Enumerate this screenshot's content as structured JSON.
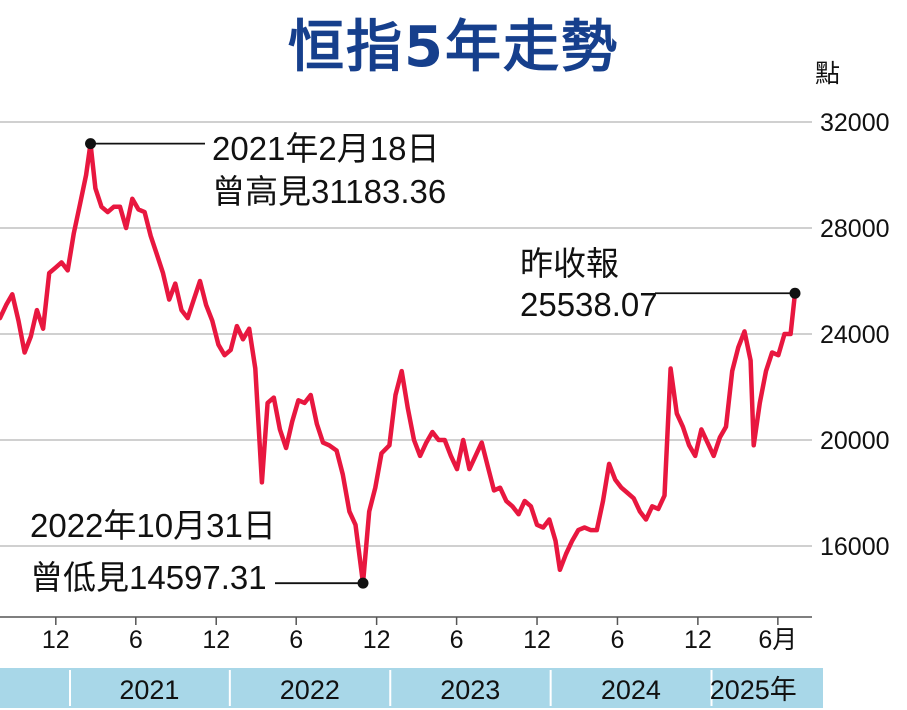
{
  "chart_data": {
    "type": "line",
    "title": "恒指5年走勢",
    "ylabel": "點",
    "ylim": [
      13000,
      32500
    ],
    "yticks": [
      32000,
      28000,
      24000,
      20000,
      16000
    ],
    "x_start": "2020-07-27",
    "x_end": "2025-07-10",
    "xtick_labels": [
      {
        "date": "2020-12-01",
        "label": "12"
      },
      {
        "date": "2021-06-01",
        "label": "6"
      },
      {
        "date": "2021-12-01",
        "label": "12"
      },
      {
        "date": "2022-06-01",
        "label": "6"
      },
      {
        "date": "2022-12-01",
        "label": "12"
      },
      {
        "date": "2023-06-01",
        "label": "6"
      },
      {
        "date": "2023-12-01",
        "label": "12"
      },
      {
        "date": "2024-06-01",
        "label": "6"
      },
      {
        "date": "2024-12-01",
        "label": "12"
      },
      {
        "date": "2025-06-01",
        "label": "6月"
      }
    ],
    "years": [
      {
        "label": "2021",
        "start": "2021-01-01",
        "end": "2021-12-31"
      },
      {
        "label": "2022",
        "start": "2022-01-01",
        "end": "2022-12-31"
      },
      {
        "label": "2023",
        "start": "2023-01-01",
        "end": "2023-12-31"
      },
      {
        "label": "2024",
        "start": "2024-01-01",
        "end": "2024-12-31"
      },
      {
        "label": "2025年",
        "start": "2025-01-01",
        "end": "2025-07-10"
      }
    ],
    "series": [
      {
        "color": "#e8173f",
        "points": [
          [
            "2020-07-27",
            24600
          ],
          [
            "2020-08-10",
            25100
          ],
          [
            "2020-08-24",
            25500
          ],
          [
            "2020-09-07",
            24500
          ],
          [
            "2020-09-21",
            23300
          ],
          [
            "2020-10-05",
            23900
          ],
          [
            "2020-10-19",
            24900
          ],
          [
            "2020-11-02",
            24200
          ],
          [
            "2020-11-16",
            26300
          ],
          [
            "2020-11-30",
            26500
          ],
          [
            "2020-12-14",
            26700
          ],
          [
            "2020-12-28",
            26400
          ],
          [
            "2021-01-11",
            27800
          ],
          [
            "2021-01-25",
            28900
          ],
          [
            "2021-02-08",
            30000
          ],
          [
            "2021-02-18",
            31183
          ],
          [
            "2021-03-01",
            29500
          ],
          [
            "2021-03-15",
            28800
          ],
          [
            "2021-03-29",
            28600
          ],
          [
            "2021-04-12",
            28800
          ],
          [
            "2021-04-26",
            28800
          ],
          [
            "2021-05-10",
            28000
          ],
          [
            "2021-05-24",
            29100
          ],
          [
            "2021-06-07",
            28700
          ],
          [
            "2021-06-21",
            28600
          ],
          [
            "2021-07-05",
            27700
          ],
          [
            "2021-07-19",
            27000
          ],
          [
            "2021-08-02",
            26300
          ],
          [
            "2021-08-16",
            25300
          ],
          [
            "2021-08-30",
            25900
          ],
          [
            "2021-09-13",
            24900
          ],
          [
            "2021-09-27",
            24600
          ],
          [
            "2021-10-11",
            25300
          ],
          [
            "2021-10-25",
            26000
          ],
          [
            "2021-11-08",
            25100
          ],
          [
            "2021-11-22",
            24500
          ],
          [
            "2021-12-06",
            23600
          ],
          [
            "2021-12-20",
            23200
          ],
          [
            "2022-01-03",
            23400
          ],
          [
            "2022-01-17",
            24300
          ],
          [
            "2022-01-31",
            23800
          ],
          [
            "2022-02-14",
            24200
          ],
          [
            "2022-02-28",
            22700
          ],
          [
            "2022-03-15",
            18400
          ],
          [
            "2022-03-28",
            21400
          ],
          [
            "2022-04-11",
            21600
          ],
          [
            "2022-04-25",
            20400
          ],
          [
            "2022-05-09",
            19700
          ],
          [
            "2022-05-23",
            20700
          ],
          [
            "2022-06-06",
            21500
          ],
          [
            "2022-06-20",
            21400
          ],
          [
            "2022-07-04",
            21700
          ],
          [
            "2022-07-18",
            20600
          ],
          [
            "2022-08-01",
            19900
          ],
          [
            "2022-08-15",
            19800
          ],
          [
            "2022-09-01",
            19600
          ],
          [
            "2022-09-15",
            18700
          ],
          [
            "2022-09-30",
            17300
          ],
          [
            "2022-10-14",
            16800
          ],
          [
            "2022-10-31",
            14597
          ],
          [
            "2022-11-14",
            17300
          ],
          [
            "2022-11-28",
            18200
          ],
          [
            "2022-12-12",
            19500
          ],
          [
            "2022-12-30",
            19800
          ],
          [
            "2023-01-13",
            21700
          ],
          [
            "2023-01-27",
            22600
          ],
          [
            "2023-02-10",
            21200
          ],
          [
            "2023-02-24",
            20000
          ],
          [
            "2023-03-10",
            19400
          ],
          [
            "2023-03-24",
            19900
          ],
          [
            "2023-04-07",
            20300
          ],
          [
            "2023-04-21",
            20000
          ],
          [
            "2023-05-05",
            20000
          ],
          [
            "2023-05-19",
            19400
          ],
          [
            "2023-06-02",
            18900
          ],
          [
            "2023-06-16",
            20000
          ],
          [
            "2023-06-30",
            18900
          ],
          [
            "2023-07-14",
            19400
          ],
          [
            "2023-07-28",
            19900
          ],
          [
            "2023-08-11",
            19000
          ],
          [
            "2023-08-25",
            18100
          ],
          [
            "2023-09-08",
            18200
          ],
          [
            "2023-09-22",
            17700
          ],
          [
            "2023-10-06",
            17500
          ],
          [
            "2023-10-20",
            17200
          ],
          [
            "2023-11-03",
            17700
          ],
          [
            "2023-11-17",
            17500
          ],
          [
            "2023-12-01",
            16800
          ],
          [
            "2023-12-15",
            16700
          ],
          [
            "2023-12-29",
            17000
          ],
          [
            "2024-01-12",
            16200
          ],
          [
            "2024-01-22",
            15100
          ],
          [
            "2024-02-05",
            15700
          ],
          [
            "2024-02-19",
            16200
          ],
          [
            "2024-03-04",
            16600
          ],
          [
            "2024-03-18",
            16700
          ],
          [
            "2024-04-01",
            16600
          ],
          [
            "2024-04-15",
            16600
          ],
          [
            "2024-04-29",
            17700
          ],
          [
            "2024-05-13",
            19100
          ],
          [
            "2024-05-27",
            18500
          ],
          [
            "2024-06-10",
            18200
          ],
          [
            "2024-06-24",
            18000
          ],
          [
            "2024-07-08",
            17800
          ],
          [
            "2024-07-22",
            17300
          ],
          [
            "2024-08-05",
            17000
          ],
          [
            "2024-08-19",
            17500
          ],
          [
            "2024-09-02",
            17400
          ],
          [
            "2024-09-16",
            17900
          ],
          [
            "2024-09-30",
            22700
          ],
          [
            "2024-10-14",
            21000
          ],
          [
            "2024-10-28",
            20500
          ],
          [
            "2024-11-11",
            19800
          ],
          [
            "2024-11-25",
            19400
          ],
          [
            "2024-12-09",
            20400
          ],
          [
            "2024-12-23",
            19900
          ],
          [
            "2025-01-06",
            19400
          ],
          [
            "2025-01-20",
            20100
          ],
          [
            "2025-02-03",
            20500
          ],
          [
            "2025-02-17",
            22600
          ],
          [
            "2025-03-03",
            23500
          ],
          [
            "2025-03-17",
            24100
          ],
          [
            "2025-03-31",
            23000
          ],
          [
            "2025-04-07",
            19800
          ],
          [
            "2025-04-21",
            21400
          ],
          [
            "2025-05-05",
            22600
          ],
          [
            "2025-05-19",
            23300
          ],
          [
            "2025-06-02",
            23200
          ],
          [
            "2025-06-16",
            24000
          ],
          [
            "2025-06-30",
            24000
          ],
          [
            "2025-07-10",
            25538
          ]
        ]
      }
    ],
    "annotations": [
      {
        "date": "2021-02-18",
        "value": 31183.36,
        "line1": "2021年2月18日",
        "line2": "曾高見31183.36"
      },
      {
        "date": "2022-10-31",
        "value": 14597.31,
        "line1": "2022年10月31日",
        "line2": "曾低見14597.31"
      },
      {
        "date": "2025-07-10",
        "value": 25538.07,
        "line1": "昨收報",
        "line2": "25538.07"
      }
    ],
    "grid": true
  },
  "colors": {
    "title": "#163f8c",
    "line": "#e8173f",
    "year_band": "#a8d7e8",
    "grid": "#b5b5b5"
  }
}
